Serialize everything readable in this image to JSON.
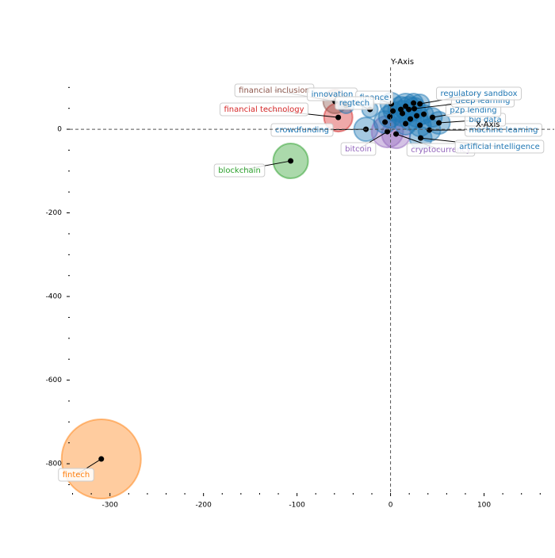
{
  "chart_data": {
    "type": "scatter",
    "x_label": "X-Axis",
    "y_label": "Y-Axis",
    "xlim": [
      -343,
      175
    ],
    "ylim": [
      -870,
      148
    ],
    "xticks": [
      -300,
      -200,
      -100,
      0,
      100
    ],
    "yticks": [
      -800,
      -600,
      -400,
      -200,
      0
    ],
    "xticks_minor": [
      -340,
      -320,
      -280,
      -260,
      -240,
      -220,
      -180,
      -160,
      -140,
      -120,
      -80,
      -60,
      -40,
      -20,
      20,
      40,
      60,
      80,
      120,
      140,
      160
    ],
    "yticks_minor": [
      -850,
      -750,
      -700,
      -650,
      -550,
      -500,
      -450,
      -350,
      -300,
      -250,
      -150,
      -100,
      -50,
      50,
      100
    ],
    "labels": [
      "fintech",
      "blockchain",
      "crowdfunding",
      "financial technology",
      "financial inclusion",
      "innovation",
      "finance",
      "regtech",
      "bitcoin",
      "cryptocurrency",
      "artificial intelligence",
      "machine learning",
      "big data",
      "p2p lending",
      "deep learning",
      "regulatory sandbox",
      null,
      null,
      null,
      null,
      null,
      null,
      null,
      null,
      null,
      null,
      null,
      null,
      null
    ],
    "x": [
      -309.3,
      -106.8,
      -26.3,
      -55.9,
      -59.3,
      -47.5,
      0.8,
      -22,
      -3.4,
      5.9,
      32.2,
      41.5,
      51.7,
      44.9,
      25.4,
      31.4,
      -5.9,
      -0.8,
      11,
      16.1,
      19.5,
      12.7,
      16.1,
      21.2,
      28,
      31.4,
      35.6,
      2.5,
      24.6
    ],
    "y": [
      -788.6,
      -75.8,
      0,
      28.4,
      66.4,
      57,
      60.7,
      47.4,
      -5.7,
      -11.4,
      -20.9,
      -1.9,
      15.2,
      28.4,
      49.3,
      60.7,
      17.1,
      30.3,
      47.4,
      55,
      47.4,
      37.9,
      13.3,
      24.6,
      32.2,
      9.5,
      36,
      43.6,
      62.6
    ],
    "sizes": [
      50,
      22,
      15,
      18,
      15,
      10,
      14,
      10,
      20,
      18,
      14,
      14,
      14,
      12,
      14,
      12,
      14,
      14,
      16,
      16,
      16,
      16,
      14,
      14,
      14,
      14,
      12,
      12,
      12
    ],
    "colors": [
      "#ff7f0e",
      "#2ca02c",
      "#1f77b4",
      "#d62728",
      "#8c564b",
      "#1f77b4",
      "#1f77b4",
      "#1f77b4",
      "#9467bd",
      "#9467bd",
      "#1f77b4",
      "#1f77b4",
      "#1f77b4",
      "#1f77b4",
      "#1f77b4",
      "#1f77b4",
      "#1f77b4",
      "#1f77b4",
      "#1f77b4",
      "#1f77b4",
      "#1f77b4",
      "#1f77b4",
      "#1f77b4",
      "#1f77b4",
      "#1f77b4",
      "#1f77b4",
      "#1f77b4",
      "#1f77b4",
      "#1f77b4"
    ]
  }
}
